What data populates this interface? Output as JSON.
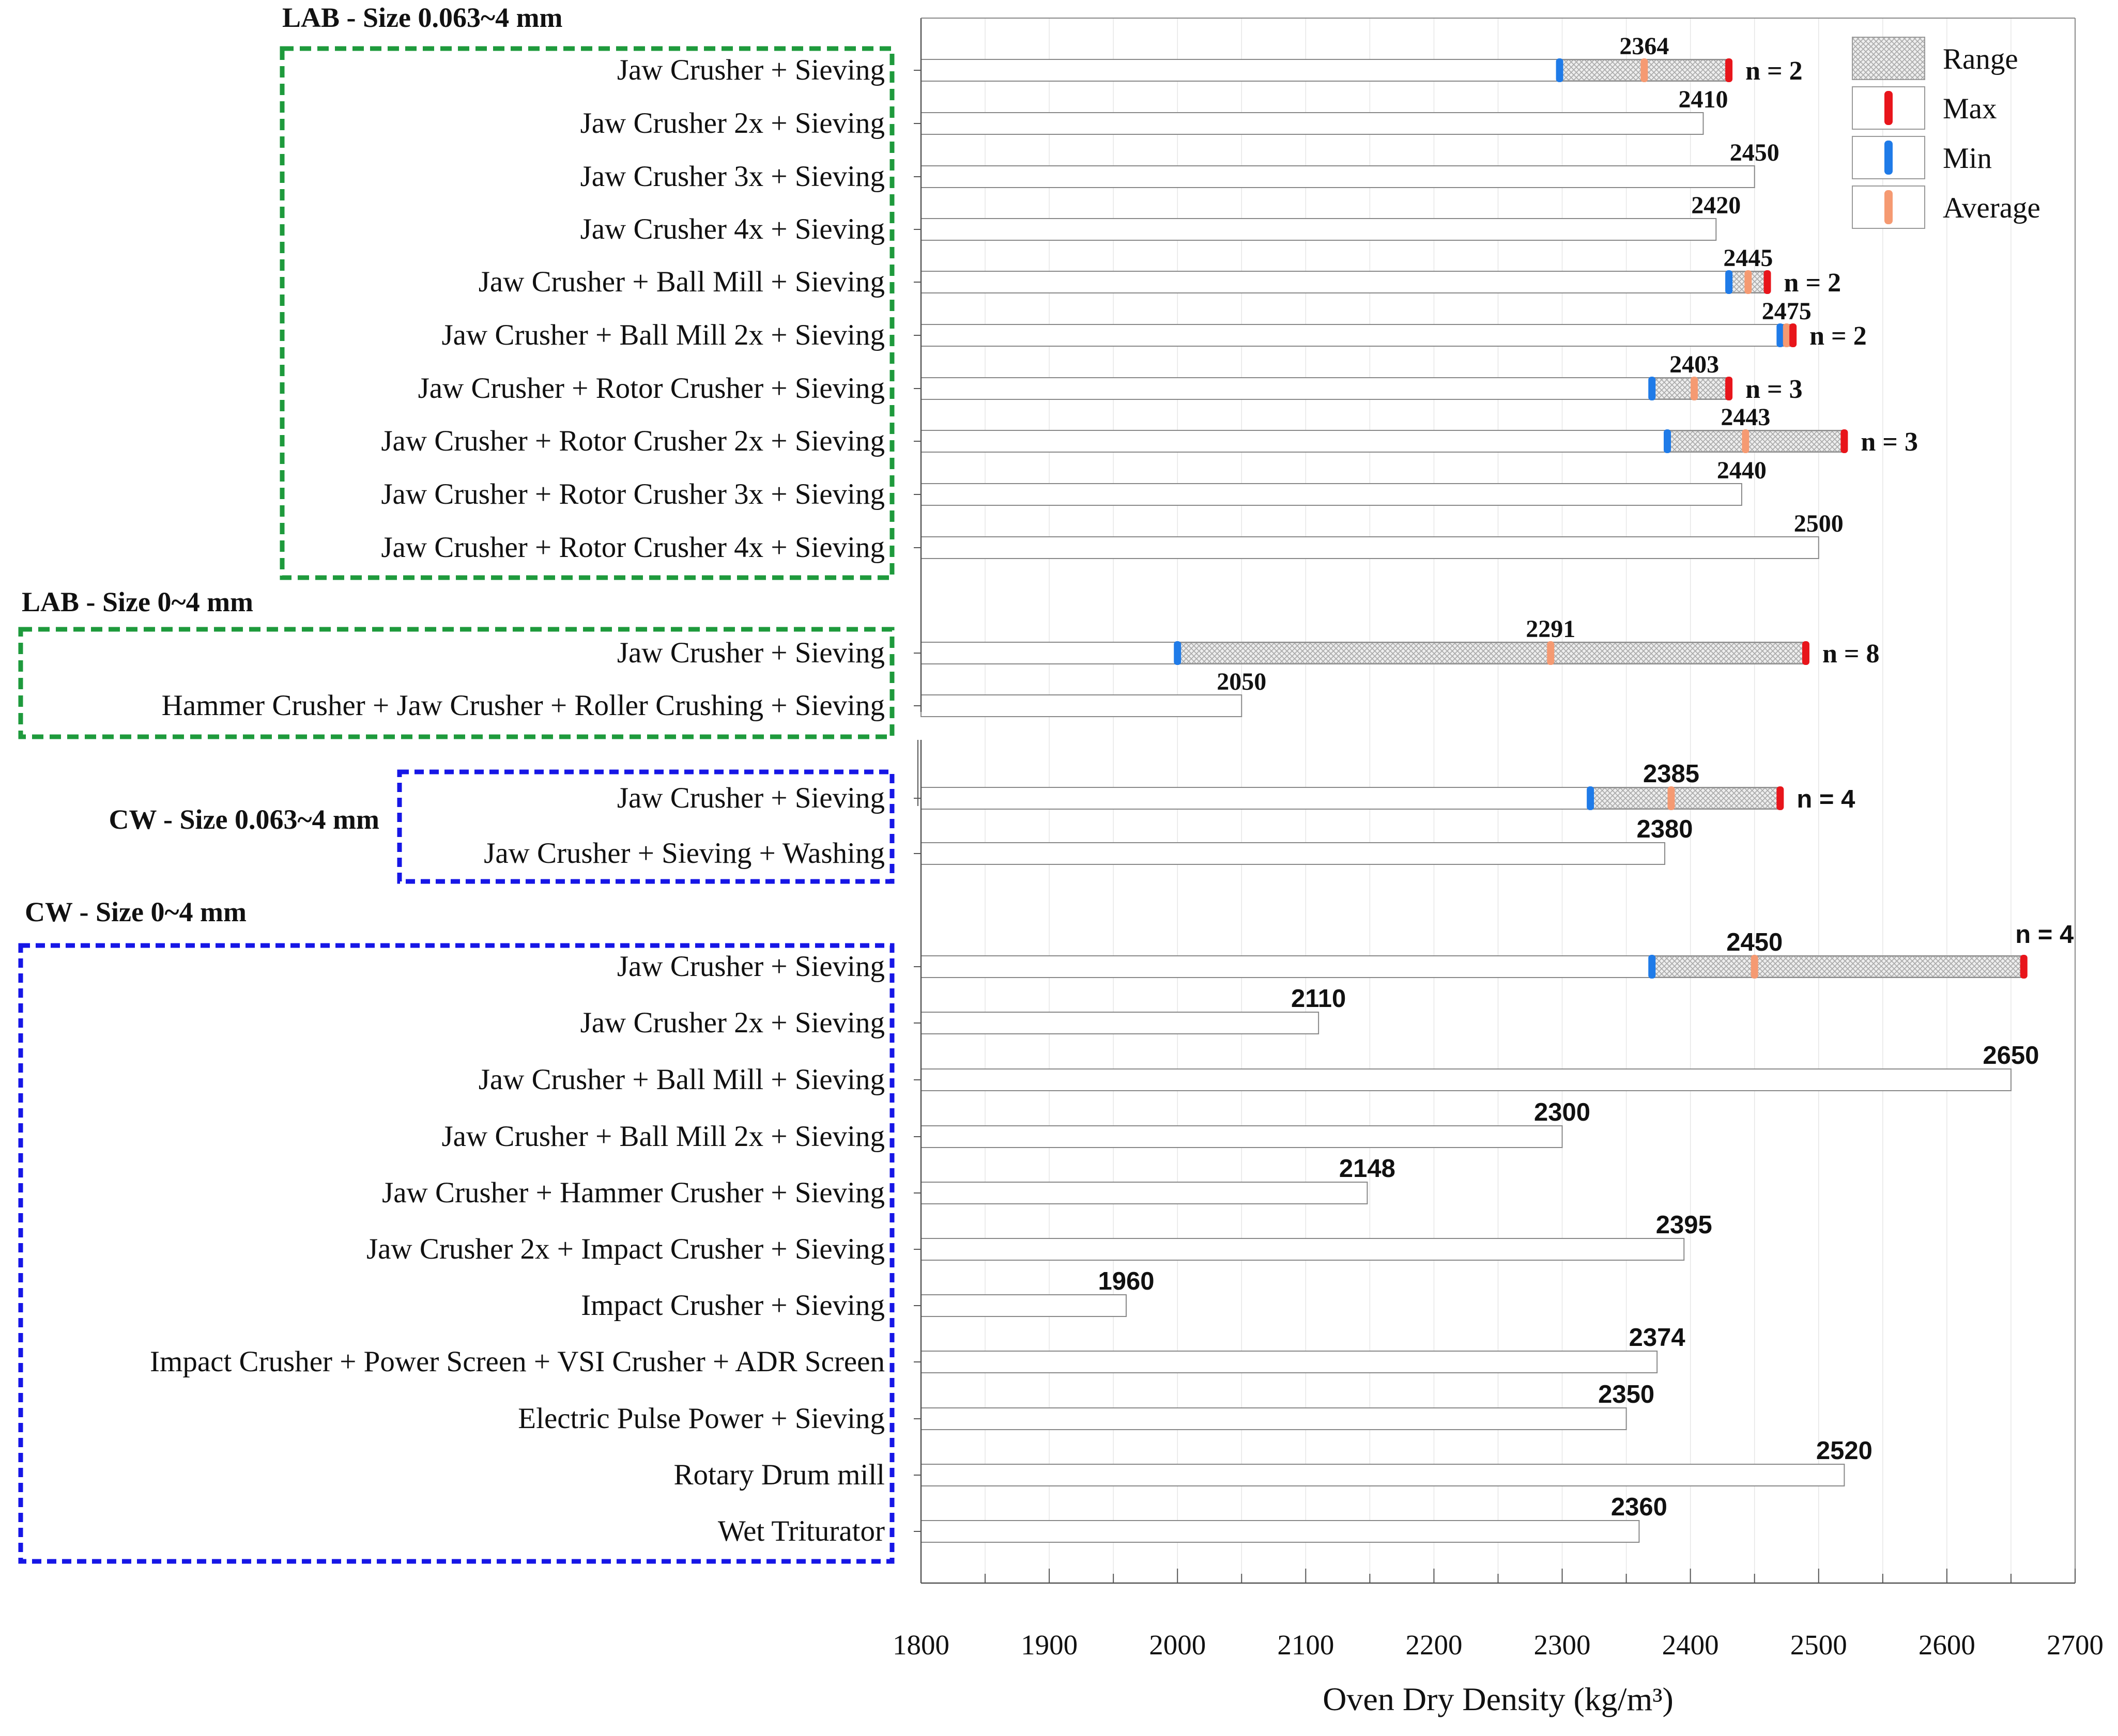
{
  "chart_data": {
    "type": "bar",
    "orientation": "horizontal",
    "xlabel": "Oven Dry Density (kg/m³)",
    "xlim": [
      1800,
      2700
    ],
    "xticks": [
      1800,
      1900,
      2000,
      2100,
      2200,
      2300,
      2400,
      2500,
      2600,
      2700
    ],
    "legend": {
      "position": "top-right",
      "entries": [
        {
          "key": "range",
          "label": "Range"
        },
        {
          "key": "max",
          "label": "Max"
        },
        {
          "key": "min",
          "label": "Min"
        },
        {
          "key": "average",
          "label": "Average"
        }
      ]
    },
    "colors": {
      "max": "#e8151b",
      "min": "#1f7be8",
      "average": "#f59a72",
      "bar_stroke": "#888888",
      "lab_box": "#1e9a3c",
      "cw_box": "#1616e6"
    },
    "groups": [
      {
        "title": "LAB - Size 0.063~4 mm",
        "box": "lab",
        "font": "serif",
        "items": [
          {
            "label": "Jaw Crusher + Sieving",
            "value": 2364,
            "min": 2298,
            "max": 2430,
            "n": "n = 2"
          },
          {
            "label": "Jaw Crusher 2x + Sieving",
            "value": 2410
          },
          {
            "label": "Jaw Crusher 3x + Sieving",
            "value": 2450
          },
          {
            "label": "Jaw Crusher 4x + Sieving",
            "value": 2420
          },
          {
            "label": "Jaw Crusher + Ball Mill + Sieving",
            "value": 2445,
            "min": 2430,
            "max": 2460,
            "n": "n = 2"
          },
          {
            "label": "Jaw Crusher + Ball Mill 2x + Sieving",
            "value": 2475,
            "min": 2470,
            "max": 2480,
            "n": "n = 2"
          },
          {
            "label": "Jaw Crusher + Rotor Crusher + Sieving",
            "value": 2403,
            "min": 2370,
            "max": 2430,
            "n": "n = 3"
          },
          {
            "label": "Jaw Crusher + Rotor Crusher 2x + Sieving",
            "value": 2443,
            "min": 2382,
            "max": 2520,
            "n": "n = 3"
          },
          {
            "label": "Jaw Crusher + Rotor Crusher 3x + Sieving",
            "value": 2440
          },
          {
            "label": "Jaw Crusher + Rotor Crusher 4x + Sieving",
            "value": 2500
          }
        ]
      },
      {
        "title": "LAB - Size 0~4 mm",
        "box": "lab",
        "font": "serif",
        "items": [
          {
            "label": "Jaw Crusher + Sieving",
            "value": 2291,
            "min": 2000,
            "max": 2490,
            "n": "n = 8"
          },
          {
            "label": "Hammer Crusher + Jaw Crusher + Roller Crushing + Sieving",
            "value": 2050
          }
        ]
      },
      {
        "title": "CW - Size 0.063~4 mm",
        "box": "cw",
        "font": "sans",
        "items": [
          {
            "label": "Jaw Crusher + Sieving",
            "value": 2385,
            "min": 2322,
            "max": 2470,
            "n": "n = 4"
          },
          {
            "label": "Jaw Crusher + Sieving + Washing",
            "value": 2380
          }
        ]
      },
      {
        "title": "CW - Size 0~4 mm",
        "box": "cw",
        "font": "sans",
        "items": [
          {
            "label": "Jaw Crusher + Sieving",
            "value": 2450,
            "min": 2370,
            "max": 2660,
            "n": "n = 4"
          },
          {
            "label": "Jaw Crusher 2x + Sieving",
            "value": 2110
          },
          {
            "label": "Jaw Crusher + Ball Mill + Sieving",
            "value": 2650
          },
          {
            "label": "Jaw Crusher + Ball Mill 2x + Sieving",
            "value": 2300
          },
          {
            "label": "Jaw Crusher + Hammer Crusher + Sieving",
            "value": 2148
          },
          {
            "label": "Jaw Crusher 2x + Impact Crusher + Sieving",
            "value": 2395
          },
          {
            "label": "Impact Crusher + Sieving",
            "value": 1960
          },
          {
            "label": "Impact Crusher + Power Screen + VSI Crusher + ADR Screen",
            "value": 2374
          },
          {
            "label": "Electric Pulse Power + Sieving",
            "value": 2350
          },
          {
            "label": "Rotary Drum mill",
            "value": 2520
          },
          {
            "label": "Wet Triturator",
            "value": 2360
          }
        ]
      }
    ]
  }
}
